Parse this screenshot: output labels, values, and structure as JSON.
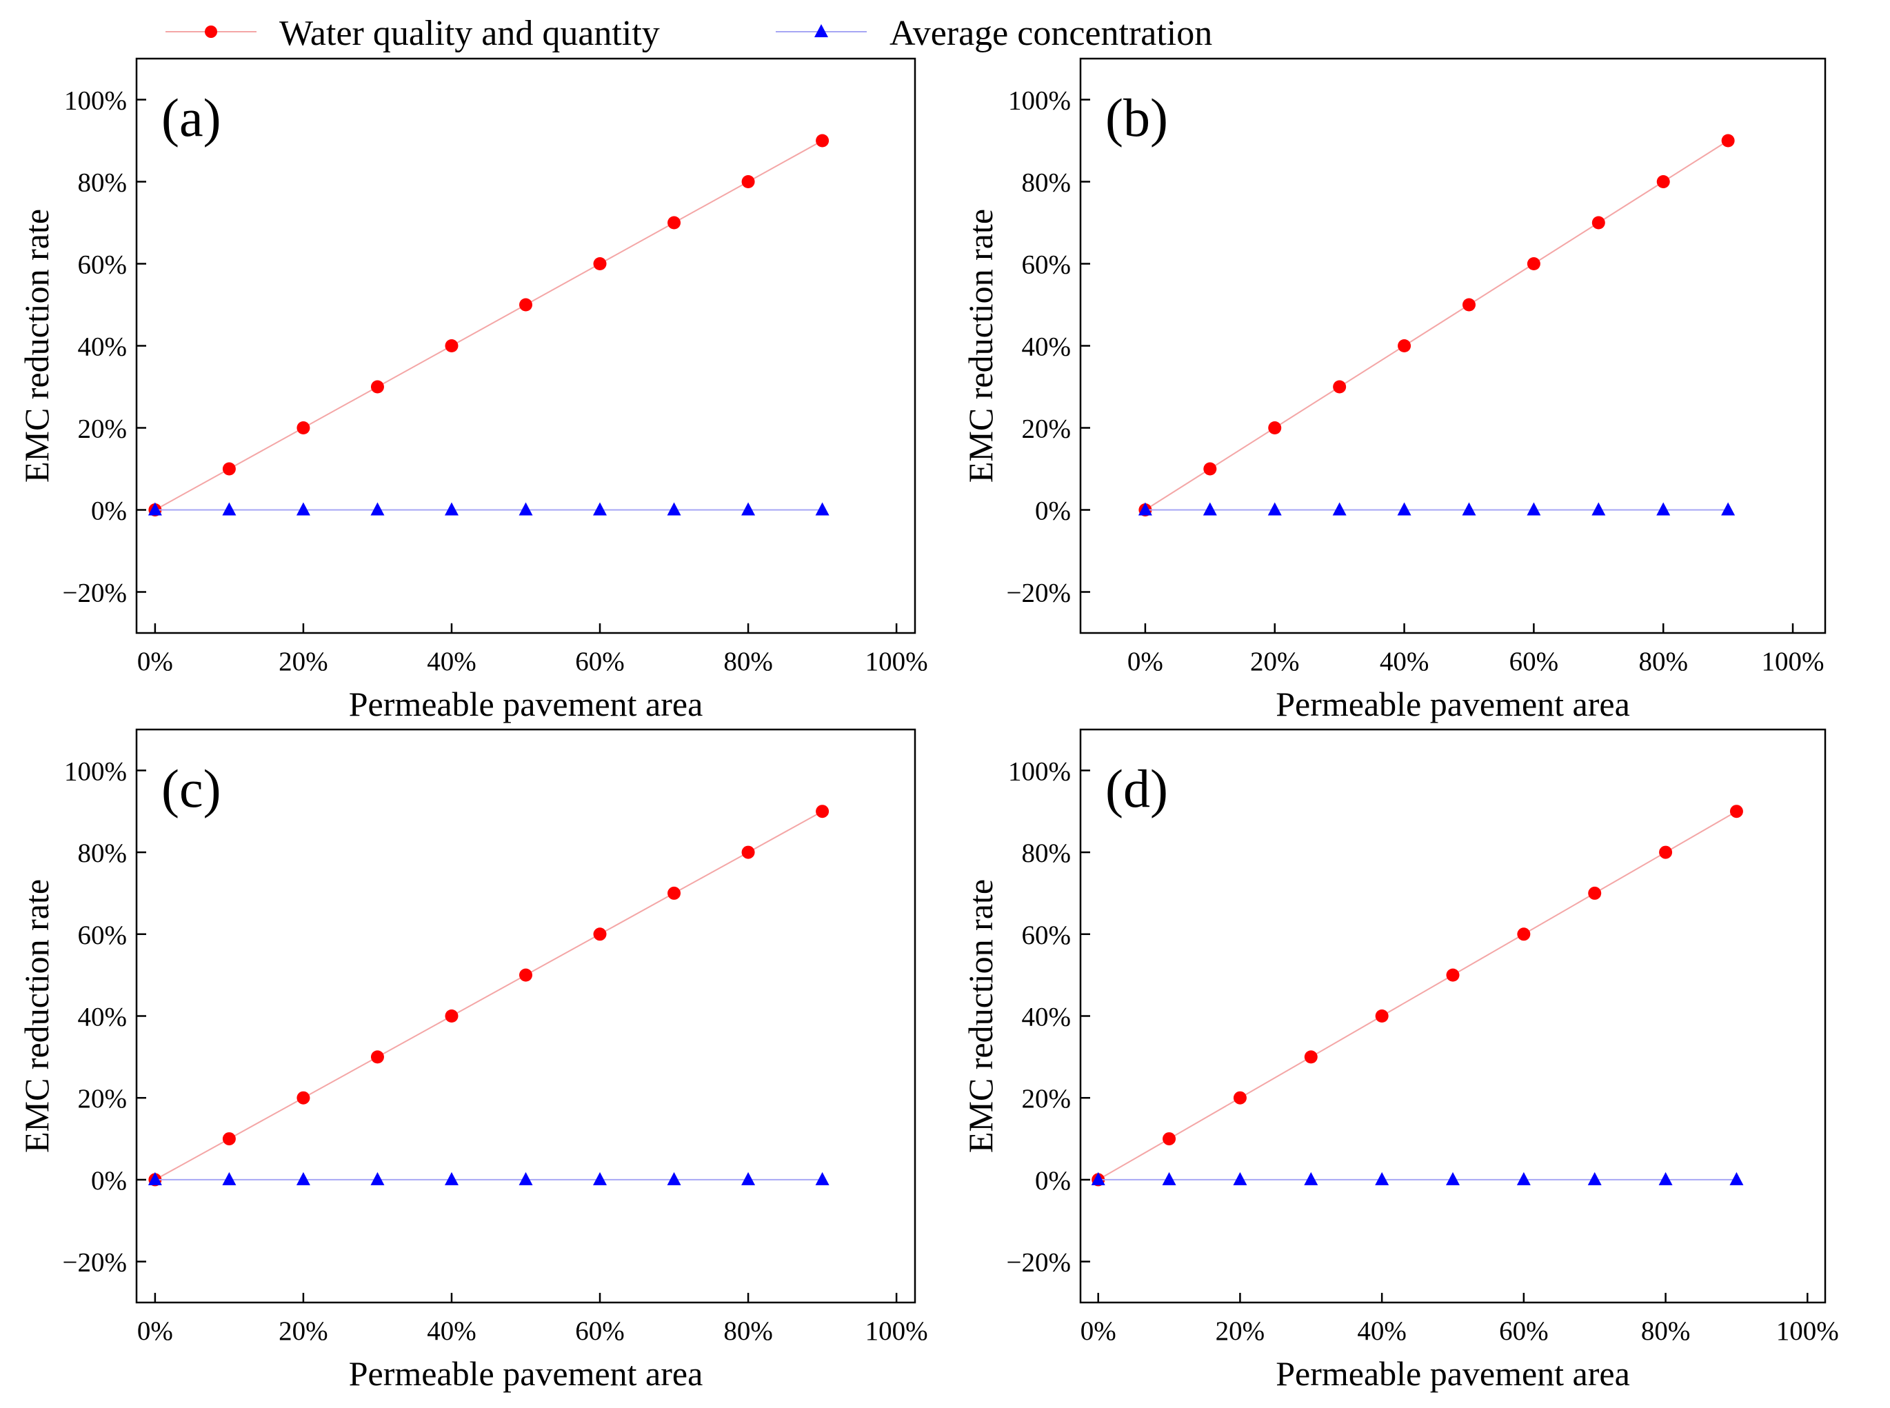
{
  "legend": {
    "items": [
      {
        "label": "Water quality and quantity",
        "color": "#ff0000",
        "line_color": "#f4a6a6",
        "marker": "circle"
      },
      {
        "label": "Average concentration",
        "color": "#0000ff",
        "line_color": "#a6a6f4",
        "marker": "triangle"
      }
    ]
  },
  "chart_data": [
    {
      "panel": "(a)",
      "type": "line",
      "xlabel": "Permeable pavement area",
      "ylabel": "EMC reduction rate",
      "xlim": [
        -0.025,
        1.025
      ],
      "ylim": [
        -0.3,
        1.1
      ],
      "xticks": [
        0,
        0.2,
        0.4,
        0.6,
        0.8,
        1.0
      ],
      "xtick_labels": [
        "0%",
        "20%",
        "40%",
        "60%",
        "80%",
        "100%"
      ],
      "yticks": [
        -0.2,
        0,
        0.2,
        0.4,
        0.6,
        0.8,
        1.0
      ],
      "ytick_labels": [
        "−20%",
        "0%",
        "20%",
        "40%",
        "60%",
        "80%",
        "100%"
      ],
      "series": [
        {
          "name": "Water quality and quantity",
          "x": [
            0,
            0.1,
            0.2,
            0.3,
            0.4,
            0.5,
            0.6,
            0.7,
            0.8,
            0.9
          ],
          "y": [
            0,
            0.1,
            0.2,
            0.3,
            0.4,
            0.5,
            0.6,
            0.7,
            0.8,
            0.9
          ]
        },
        {
          "name": "Average concentration",
          "x": [
            0,
            0.1,
            0.2,
            0.3,
            0.4,
            0.5,
            0.6,
            0.7,
            0.8,
            0.9
          ],
          "y": [
            0,
            0,
            0,
            0,
            0,
            0,
            0,
            0,
            0,
            0
          ]
        }
      ]
    },
    {
      "panel": "(b)",
      "type": "line",
      "xlabel": "Permeable pavement area",
      "ylabel": "EMC reduction rate",
      "xlim": [
        -0.1,
        1.05
      ],
      "ylim": [
        -0.3,
        1.1
      ],
      "xticks": [
        0,
        0.2,
        0.4,
        0.6,
        0.8,
        1.0
      ],
      "xtick_labels": [
        "0%",
        "20%",
        "40%",
        "60%",
        "80%",
        "100%"
      ],
      "yticks": [
        -0.2,
        0,
        0.2,
        0.4,
        0.6,
        0.8,
        1.0
      ],
      "ytick_labels": [
        "−20%",
        "0%",
        "20%",
        "40%",
        "60%",
        "80%",
        "100%"
      ],
      "series": [
        {
          "name": "Water quality and quantity",
          "x": [
            0,
            0.1,
            0.2,
            0.3,
            0.4,
            0.5,
            0.6,
            0.7,
            0.8,
            0.9
          ],
          "y": [
            0,
            0.1,
            0.2,
            0.3,
            0.4,
            0.5,
            0.6,
            0.7,
            0.8,
            0.9
          ]
        },
        {
          "name": "Average concentration",
          "x": [
            0,
            0.1,
            0.2,
            0.3,
            0.4,
            0.5,
            0.6,
            0.7,
            0.8,
            0.9
          ],
          "y": [
            0,
            0,
            0,
            0,
            0,
            0,
            0,
            0,
            0,
            0
          ]
        }
      ]
    },
    {
      "panel": "(c)",
      "type": "line",
      "xlabel": "Permeable pavement area",
      "ylabel": "EMC reduction rate",
      "xlim": [
        -0.025,
        1.025
      ],
      "ylim": [
        -0.3,
        1.1
      ],
      "xticks": [
        0,
        0.2,
        0.4,
        0.6,
        0.8,
        1.0
      ],
      "xtick_labels": [
        "0%",
        "20%",
        "40%",
        "60%",
        "80%",
        "100%"
      ],
      "yticks": [
        -0.2,
        0,
        0.2,
        0.4,
        0.6,
        0.8,
        1.0
      ],
      "ytick_labels": [
        "−20%",
        "0%",
        "20%",
        "40%",
        "60%",
        "80%",
        "100%"
      ],
      "series": [
        {
          "name": "Water quality and quantity",
          "x": [
            0,
            0.1,
            0.2,
            0.3,
            0.4,
            0.5,
            0.6,
            0.7,
            0.8,
            0.9
          ],
          "y": [
            0,
            0.1,
            0.2,
            0.3,
            0.4,
            0.5,
            0.6,
            0.7,
            0.8,
            0.9
          ]
        },
        {
          "name": "Average concentration",
          "x": [
            0,
            0.1,
            0.2,
            0.3,
            0.4,
            0.5,
            0.6,
            0.7,
            0.8,
            0.9
          ],
          "y": [
            0,
            0,
            0,
            0,
            0,
            0,
            0,
            0,
            0,
            0
          ]
        }
      ]
    },
    {
      "panel": "(d)",
      "type": "line",
      "xlabel": "Permeable pavement area",
      "ylabel": "EMC reduction rate",
      "xlim": [
        -0.025,
        1.025
      ],
      "ylim": [
        -0.3,
        1.1
      ],
      "xticks": [
        0,
        0.2,
        0.4,
        0.6,
        0.8,
        1.0
      ],
      "xtick_labels": [
        "0%",
        "20%",
        "40%",
        "60%",
        "80%",
        "100%"
      ],
      "yticks": [
        -0.2,
        0,
        0.2,
        0.4,
        0.6,
        0.8,
        1.0
      ],
      "ytick_labels": [
        "−20%",
        "0%",
        "20%",
        "40%",
        "60%",
        "80%",
        "100%"
      ],
      "series": [
        {
          "name": "Water quality and quantity",
          "x": [
            0,
            0.1,
            0.2,
            0.3,
            0.4,
            0.5,
            0.6,
            0.7,
            0.8,
            0.9
          ],
          "y": [
            0,
            0.1,
            0.2,
            0.3,
            0.4,
            0.5,
            0.6,
            0.7,
            0.8,
            0.9
          ]
        },
        {
          "name": "Average concentration",
          "x": [
            0,
            0.1,
            0.2,
            0.3,
            0.4,
            0.5,
            0.6,
            0.7,
            0.8,
            0.9
          ],
          "y": [
            0,
            0,
            0,
            0,
            0,
            0,
            0,
            0,
            0,
            0
          ]
        }
      ]
    }
  ]
}
